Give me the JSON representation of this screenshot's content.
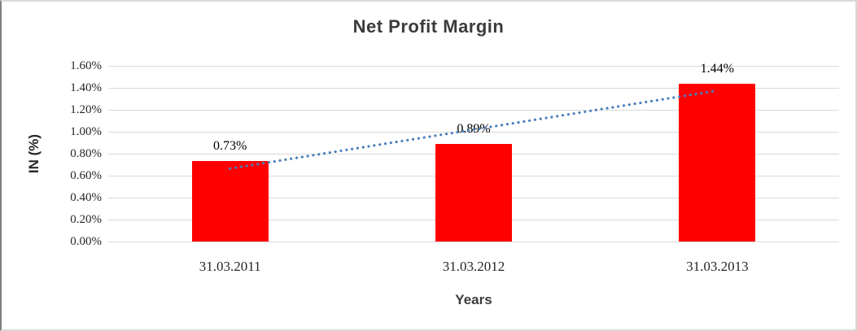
{
  "chart_data": {
    "type": "bar",
    "title": "Net Profit Margin",
    "xlabel": "Years",
    "ylabel": "IN (%)",
    "categories": [
      "31.03.2011",
      "31.03.2012",
      "31.03.2013"
    ],
    "values": [
      0.73,
      0.89,
      1.44
    ],
    "data_labels": [
      "0.73%",
      "0.89%",
      "1.44%"
    ],
    "ylim": [
      0,
      1.6
    ],
    "ytick_step": 0.2,
    "ytick_labels": [
      "0.00%",
      "0.20%",
      "0.40%",
      "0.60%",
      "0.80%",
      "1.00%",
      "1.20%",
      "1.40%",
      "1.60%"
    ],
    "grid": true,
    "legend": false,
    "bar_color": "#ff0000",
    "gridline_color": "#d9d9d9",
    "trendline": {
      "style": "dotted",
      "color": "#4a7ebb",
      "from_category_index": 0,
      "to_category_index": 2,
      "y_start": 0.665,
      "y_end": 1.375
    }
  }
}
